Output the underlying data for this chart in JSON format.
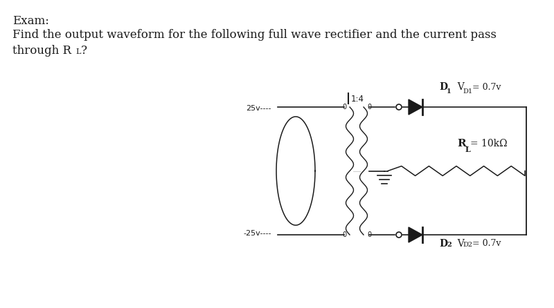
{
  "bg_color": "#ffffff",
  "circuit_color": "#1a1a1a",
  "text_color": "#1a1a1a",
  "title1": "Exam:",
  "title2": "Find the output waveform for the following full wave rectifier and the current pass",
  "title3a": "through R",
  "title3sub": "L",
  "title3b": "?",
  "lbl_25v": "25v----",
  "lbl_n25v": "-25v----",
  "lbl_ratio": "1:4",
  "lbl_D1": "D",
  "lbl_D1s": "1",
  "lbl_VD1": "V",
  "lbl_VD1s": "D1",
  "lbl_VD1v": "= 0.7v",
  "lbl_D2": "D",
  "lbl_D2s": "2",
  "lbl_VD2": "V",
  "lbl_VD2s": "D2",
  "lbl_VD2v": "= 0.7v",
  "lbl_RL": "R",
  "lbl_RLs": "L",
  "lbl_RLv": "= 10kΩ"
}
